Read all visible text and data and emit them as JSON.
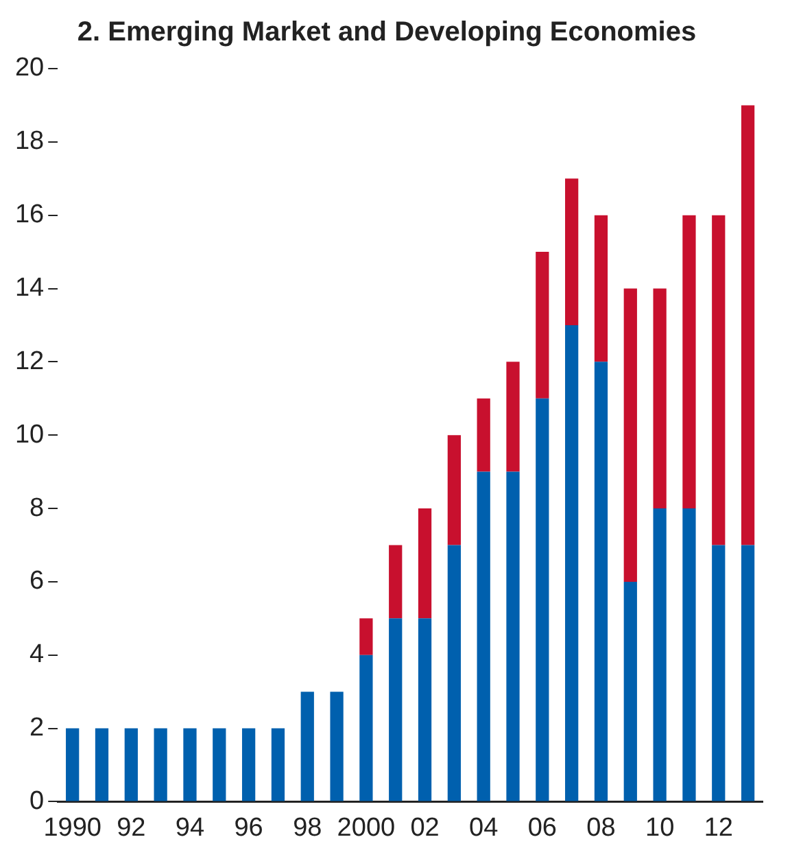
{
  "chart_data": {
    "type": "bar",
    "title": "2. Emerging Market and Developing Economies",
    "stacked": true,
    "categories": [
      "1990",
      null,
      "92",
      null,
      "94",
      null,
      "96",
      null,
      "98",
      null,
      "2000",
      null,
      "02",
      null,
      "04",
      null,
      "06",
      null,
      "08",
      null,
      "10",
      null,
      "12",
      null
    ],
    "series": [
      {
        "color": "#0060ae",
        "values": [
          2,
          2,
          2,
          2,
          2,
          2,
          2,
          2,
          3,
          3,
          4,
          5,
          5,
          7,
          9,
          9,
          11,
          13,
          12,
          6,
          8,
          8,
          7,
          7
        ]
      },
      {
        "color": "#c8102e",
        "values": [
          0,
          0,
          0,
          0,
          0,
          0,
          0,
          0,
          0,
          0,
          1,
          2,
          3,
          3,
          2,
          3,
          4,
          4,
          4,
          8,
          6,
          8,
          9,
          12
        ]
      }
    ],
    "ylim": [
      0,
      20
    ],
    "yticks": [
      0,
      2,
      4,
      6,
      8,
      10,
      12,
      14,
      16,
      18,
      20
    ],
    "grid": false,
    "legend": false
  }
}
